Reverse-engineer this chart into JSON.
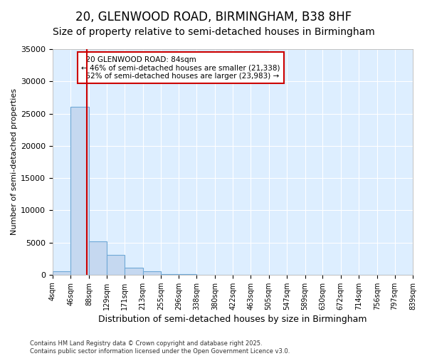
{
  "title": "20, GLENWOOD ROAD, BIRMINGHAM, B38 8HF",
  "subtitle": "Size of property relative to semi-detached houses in Birmingham",
  "xlabel": "Distribution of semi-detached houses by size in Birmingham",
  "ylabel": "Number of semi-detached properties",
  "footnote1": "Contains HM Land Registry data © Crown copyright and database right 2025.",
  "footnote2": "Contains public sector information licensed under the Open Government Licence v3.0.",
  "property_size": 84,
  "property_label": "20 GLENWOOD ROAD: 84sqm",
  "pct_smaller": 46,
  "count_smaller": 21338,
  "pct_larger": 52,
  "count_larger": 23983,
  "bin_edges": [
    4,
    46,
    88,
    129,
    171,
    213,
    255,
    296,
    338,
    380,
    422,
    463,
    505,
    547,
    589,
    630,
    672,
    714,
    756,
    797,
    839
  ],
  "bar_heights": [
    500,
    26100,
    5200,
    3100,
    1100,
    500,
    100,
    50,
    20,
    10,
    8,
    5,
    4,
    3,
    2,
    2,
    1,
    1,
    1,
    1
  ],
  "bar_color": "#c5d8f0",
  "bar_edge_color": "#6fa8d6",
  "line_color": "#cc0000",
  "ylim": [
    0,
    35000
  ],
  "plot_bg_color": "#ddeeff",
  "fig_bg_color": "#ffffff",
  "grid_color": "#ffffff",
  "annotation_box_facecolor": "#ffffff",
  "annotation_box_edgecolor": "#cc0000",
  "title_fontsize": 12,
  "subtitle_fontsize": 10,
  "yticks": [
    0,
    5000,
    10000,
    15000,
    20000,
    25000,
    30000,
    35000
  ]
}
